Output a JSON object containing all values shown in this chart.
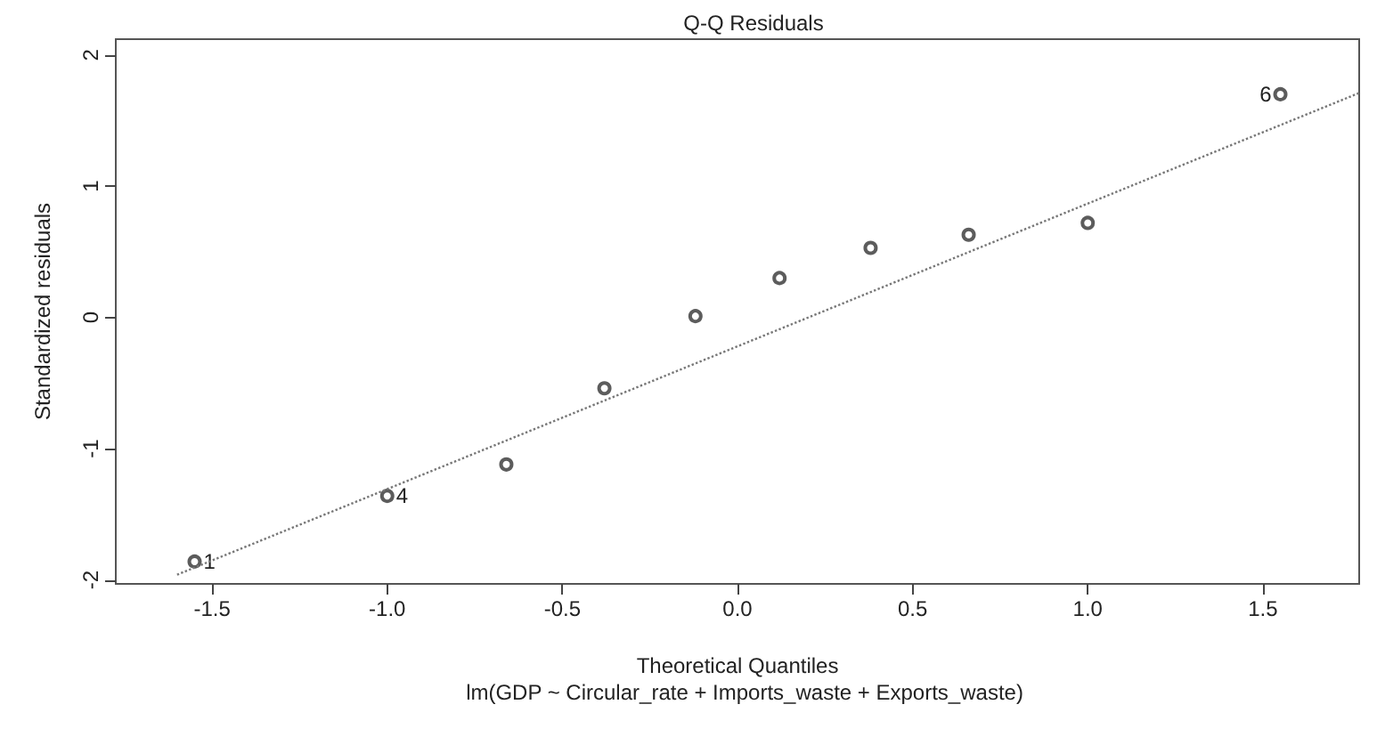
{
  "chart_data": {
    "type": "scatter",
    "title": "Q-Q Residuals",
    "xlabel": "Theoretical Quantiles",
    "ylabel": "Standardized residuals",
    "annotations": [
      "lm(GDP ~ Circular_rate + Imports_waste + Exports_waste)",
      {
        "text": "1",
        "x": -1.55,
        "y": -1.86
      },
      {
        "text": "4",
        "x": -1.0,
        "y": -1.36
      },
      {
        "text": "6",
        "x": 1.55,
        "y": 1.7
      }
    ],
    "series": [
      {
        "color": "#333333",
        "marker": "circle",
        "x": [
          -1.55,
          -1.0,
          -0.66,
          -0.38,
          -0.12,
          0.12,
          0.38,
          0.66,
          1.0,
          1.55
        ],
        "values": [
          -1.86,
          -1.36,
          -1.12,
          -0.54,
          0.01,
          0.3,
          0.53,
          0.63,
          0.72,
          1.7
        ]
      },
      {
        "type": "line",
        "color": "#777777",
        "line_style": "dotted",
        "marker": "none",
        "x": [
          -1.6,
          1.775
        ],
        "values": [
          -1.96,
          1.71
        ]
      }
    ],
    "xlim": [
      -1.775,
      1.775
    ],
    "xticks": [
      {
        "value": -1.5,
        "label": "-1.5"
      },
      {
        "value": -1,
        "label": "-1.0"
      },
      {
        "value": -0.5,
        "label": "-0.5"
      },
      {
        "value": 0,
        "label": "0.0"
      },
      {
        "value": 0.5,
        "label": "0.5"
      },
      {
        "value": 1,
        "label": "1.0"
      },
      {
        "value": 1.5,
        "label": "1.5"
      }
    ],
    "ylim": [
      -2.03,
      2.12
    ],
    "yticks": [
      -2,
      -1,
      0,
      1,
      2
    ],
    "grid": false
  }
}
